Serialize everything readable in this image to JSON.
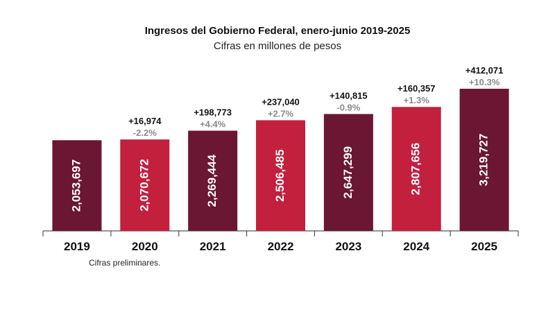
{
  "chart_data": {
    "type": "bar",
    "title": "Ingresos del Gobierno Federal, enero-junio 2019-2025",
    "subtitle": "Cifras en millones de pesos",
    "categories": [
      "2019",
      "2020",
      "2021",
      "2022",
      "2023",
      "2024",
      "2025"
    ],
    "values": [
      2053697,
      2070672,
      2269444,
      2506485,
      2647299,
      2807656,
      3219727
    ],
    "value_labels": [
      "2,053,697",
      "2,070,672",
      "2,269,444",
      "2,506,485",
      "2,647,299",
      "2,807,656",
      "3,219,727"
    ],
    "change_labels": [
      "",
      "+16,974",
      "+198,773",
      "+237,040",
      "+140,815",
      "+160,357",
      "+412,071"
    ],
    "pct_labels": [
      "",
      "-2.2%",
      "+4.4%",
      "+2.7%",
      "-0.9%",
      "+1.3%",
      "+10.3%"
    ],
    "bar_colors": [
      "#6b1632",
      "#c3203e",
      "#6b1632",
      "#c3203e",
      "#6b1632",
      "#c3203e",
      "#6b1632"
    ],
    "xlabel": "",
    "ylabel": "",
    "ylim": [
      0,
      3219727
    ],
    "grid": false,
    "footnote": "Cifras preliminares."
  }
}
